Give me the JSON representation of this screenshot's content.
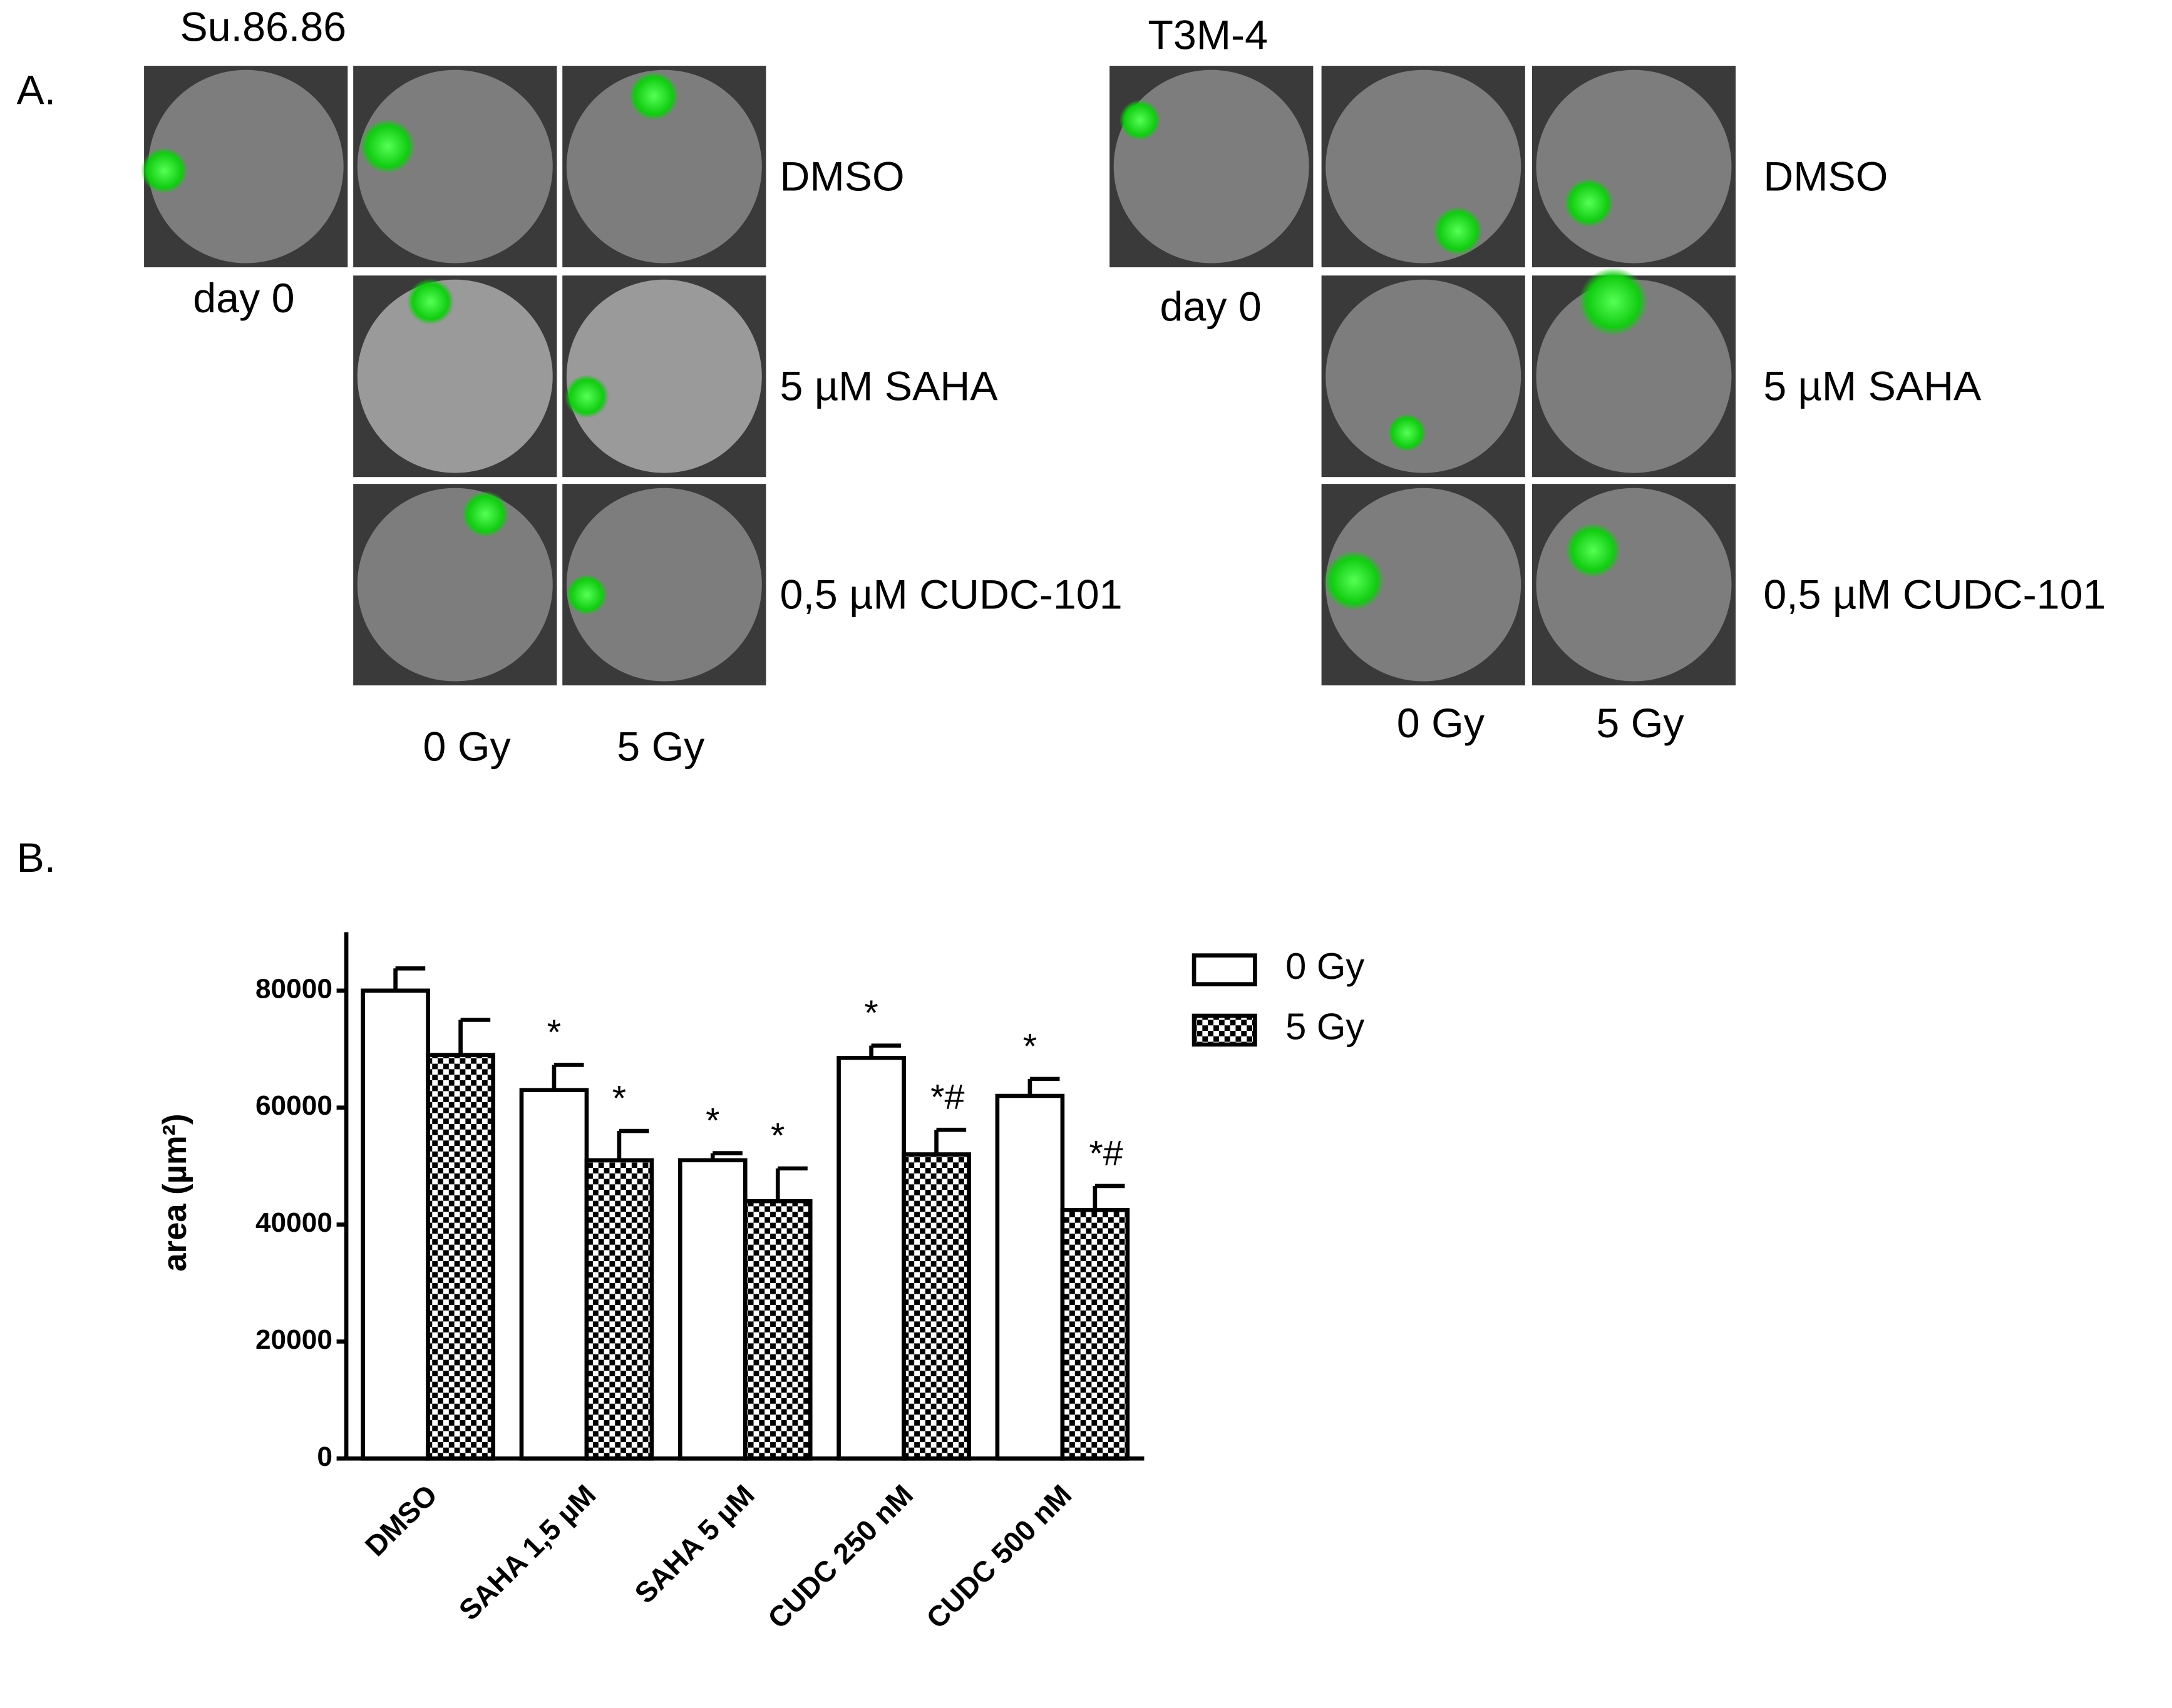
{
  "panel_a": {
    "label": "A.",
    "panels": [
      {
        "cell_line": "Su.86.86",
        "day_label": "day 0",
        "rows": [
          "DMSO",
          "5 µM SAHA",
          "0,5 µM CUDC-101"
        ],
        "columns": [
          "0 Gy",
          "5 Gy"
        ]
      },
      {
        "cell_line": "T3M-4",
        "day_label": "day 0",
        "rows": [
          "DMSO",
          "5 µM SAHA",
          "0,5 µM CUDC-101"
        ],
        "columns": [
          "0 Gy",
          "5 Gy"
        ]
      }
    ]
  },
  "panel_b_label": "B.",
  "chart_data": {
    "type": "bar",
    "y_label": "area (µm²)",
    "categories": [
      "DMSO",
      "SAHA 1,5 µM",
      "SAHA 5 µM",
      "CUDC 250 nM",
      "CUDC 500 nM"
    ],
    "series": [
      {
        "name": "0 Gy",
        "color": "#ffffff",
        "pattern": "solid",
        "values": [
          80000,
          63000,
          51000,
          68500,
          62000
        ],
        "errors": [
          3800,
          4300,
          1200,
          2100,
          2900
        ],
        "annotations": [
          null,
          "*",
          "*",
          "*",
          "*"
        ]
      },
      {
        "name": "5 Gy",
        "color": "#000000",
        "pattern": "checker",
        "values": [
          69000,
          51000,
          44000,
          52000,
          42500
        ],
        "errors": [
          6000,
          5000,
          5600,
          4200,
          4100
        ],
        "annotations": [
          null,
          "*",
          "*",
          "*#",
          "*#"
        ]
      }
    ],
    "ylim": [
      0,
      90000
    ],
    "yticks": [
      0,
      20000,
      40000,
      60000,
      80000
    ],
    "grid": false,
    "legend": "top-right"
  }
}
